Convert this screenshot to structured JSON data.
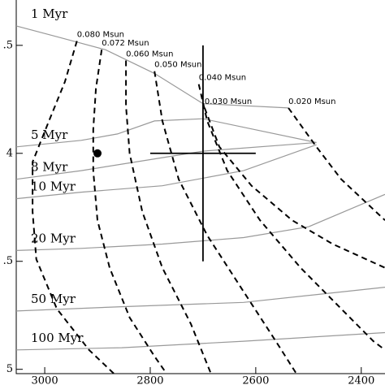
{
  "chart_data": {
    "type": "line",
    "xlim": [
      3054,
      2355
    ],
    "ylim": [
      3.29,
      5.02
    ],
    "xticks": [
      3000,
      2800,
      2600,
      2400
    ],
    "yticks": [
      {
        "value": 3.5,
        "label": ".5"
      },
      4,
      {
        "value": 4.5,
        "label": ".5"
      },
      5
    ],
    "series": [
      {
        "name": "1 Myr",
        "color": "#999999",
        "dashed": false,
        "x": [
          3054,
          2977,
          2885,
          2792,
          2700,
          2538
        ],
        "y": [
          3.41,
          3.46,
          3.52,
          3.63,
          3.77,
          3.79
        ]
      },
      {
        "name": "5 Myr",
        "color": "#999999",
        "dashed": false,
        "x": [
          3054,
          2931,
          2862,
          2792,
          2700,
          2485
        ],
        "y": [
          3.97,
          3.94,
          3.91,
          3.85,
          3.84,
          3.95
        ]
      },
      {
        "name": "8 Myr",
        "color": "#999999",
        "dashed": false,
        "x": [
          3054,
          2931,
          2777,
          2700,
          2485
        ],
        "y": [
          4.12,
          4.08,
          4.02,
          3.99,
          3.95
        ]
      },
      {
        "name": "10 Myr",
        "color": "#999999",
        "dashed": false,
        "x": [
          3054,
          2931,
          2777,
          2623,
          2485
        ],
        "y": [
          4.21,
          4.18,
          4.15,
          4.08,
          3.96
        ]
      },
      {
        "name": "20 Myr",
        "color": "#999999",
        "dashed": false,
        "x": [
          3054,
          2931,
          2777,
          2623,
          2500,
          2355
        ],
        "y": [
          4.45,
          4.44,
          4.42,
          4.39,
          4.34,
          4.19
        ]
      },
      {
        "name": "50 Myr",
        "color": "#999999",
        "dashed": false,
        "x": [
          3054,
          2854,
          2623,
          2355
        ],
        "y": [
          4.73,
          4.71,
          4.69,
          4.62
        ]
      },
      {
        "name": "100 Myr",
        "color": "#999999",
        "dashed": false,
        "x": [
          3054,
          2854,
          2623,
          2355
        ],
        "y": [
          4.91,
          4.9,
          4.87,
          4.83
        ]
      },
      {
        "name": "0.080 Msun",
        "color": "#000000",
        "dashed": true,
        "x": [
          2939,
          2962,
          2992,
          3023,
          3023,
          3016,
          2977,
          2916,
          2869
        ],
        "y": [
          3.48,
          3.67,
          3.85,
          4.04,
          4.27,
          4.49,
          4.72,
          4.91,
          5.02
        ]
      },
      {
        "name": "0.072 Msun",
        "color": "#000000",
        "dashed": true,
        "x": [
          2892,
          2903,
          2908,
          2908,
          2900,
          2877,
          2839,
          2792,
          2769
        ],
        "y": [
          3.52,
          3.7,
          3.89,
          4.08,
          4.31,
          4.53,
          4.76,
          4.94,
          5.02
        ]
      },
      {
        "name": "0.060 Msun",
        "color": "#000000",
        "dashed": true,
        "x": [
          2846,
          2846,
          2839,
          2815,
          2777,
          2723,
          2685
        ],
        "y": [
          3.57,
          3.78,
          4.0,
          4.27,
          4.53,
          4.79,
          5.02
        ]
      },
      {
        "name": "0.050 Msun",
        "color": "#000000",
        "dashed": true,
        "x": [
          2792,
          2777,
          2746,
          2692,
          2623,
          2562,
          2523
        ],
        "y": [
          3.62,
          3.85,
          4.12,
          4.38,
          4.64,
          4.87,
          5.02
        ]
      },
      {
        "name": "0.040 Msun",
        "color": "#000000",
        "dashed": true,
        "x": [
          2708,
          2692,
          2654,
          2592,
          2515,
          2438,
          2377,
          2355
        ],
        "y": [
          3.68,
          3.85,
          4.08,
          4.31,
          4.53,
          4.72,
          4.87,
          4.91
        ]
      },
      {
        "name": "0.030 Msun",
        "color": "#000000",
        "dashed": true,
        "x": [
          2697,
          2669,
          2608,
          2531,
          2454,
          2355
        ],
        "y": [
          3.79,
          3.97,
          4.15,
          4.31,
          4.42,
          4.53
        ]
      },
      {
        "name": "0.020 Msun",
        "color": "#000000",
        "dashed": true,
        "x": [
          2538,
          2485,
          2438,
          2355
        ],
        "y": [
          3.79,
          3.97,
          4.12,
          4.31
        ]
      }
    ],
    "point": {
      "x": 2900,
      "y": 4.0
    },
    "measurement": {
      "x": 2700,
      "y": 4.0,
      "xerr": 100,
      "yerr": 0.5
    }
  }
}
